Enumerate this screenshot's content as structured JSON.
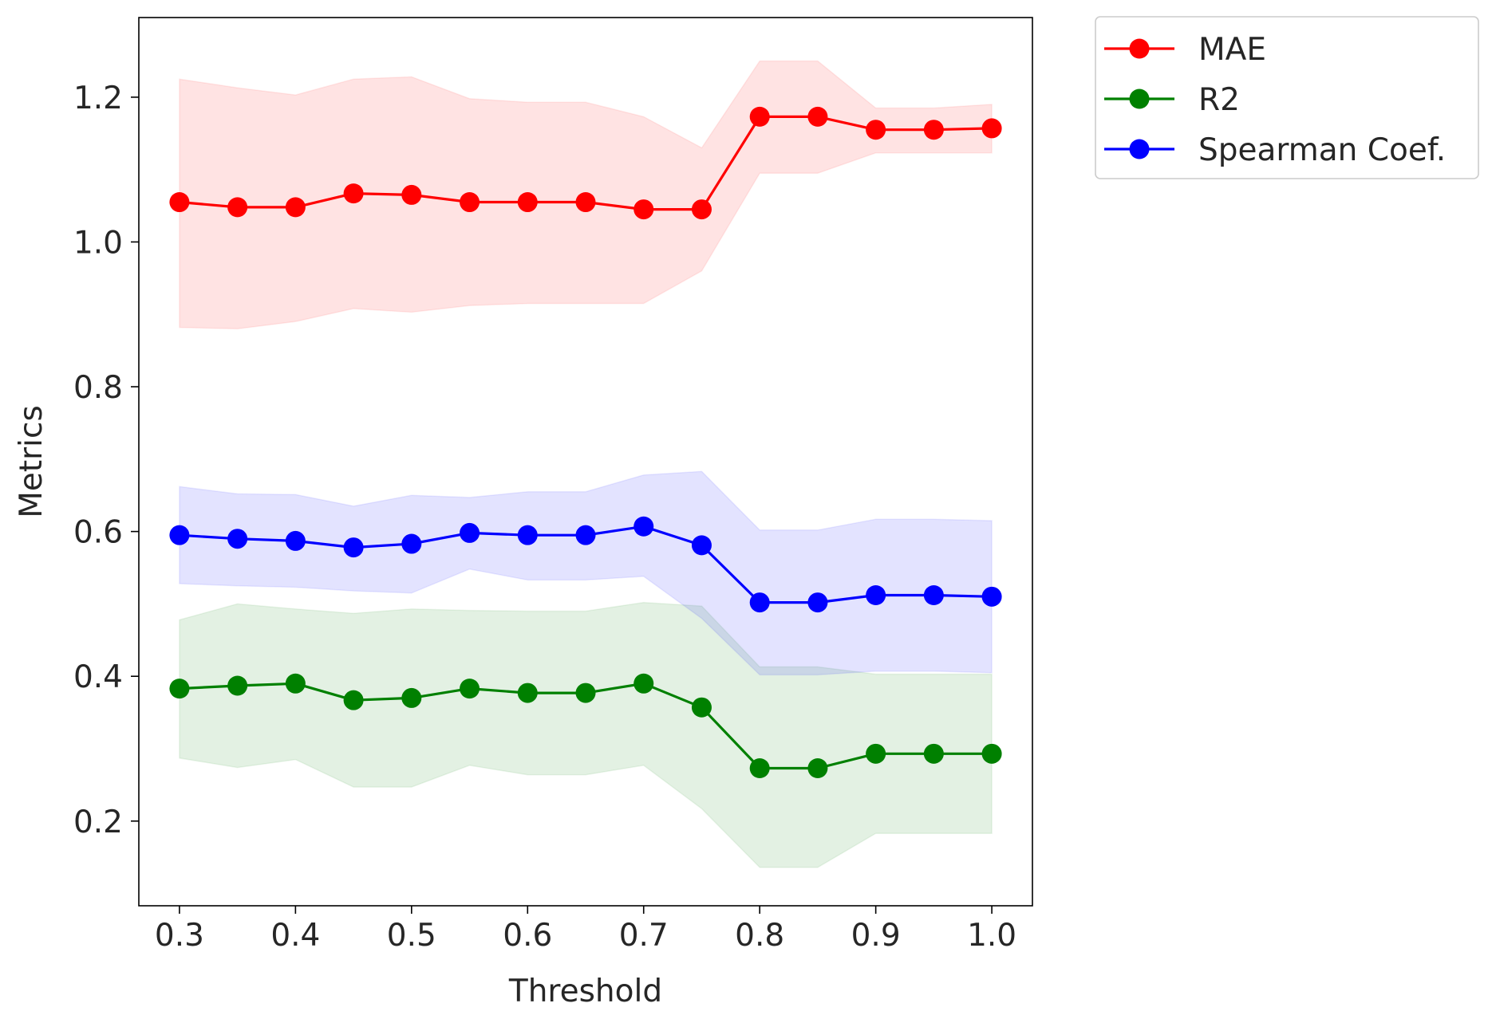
{
  "chart_data": {
    "type": "line",
    "title": "",
    "xlabel": "Threshold",
    "ylabel": "Metrics",
    "xlim": [
      0.265,
      1.035
    ],
    "ylim": [
      0.083,
      1.31
    ],
    "x": [
      0.3,
      0.35,
      0.4,
      0.45,
      0.5,
      0.55,
      0.6,
      0.65,
      0.7,
      0.75,
      0.8,
      0.85,
      0.9,
      0.95,
      1.0
    ],
    "xticks": [
      "0.3",
      "0.4",
      "0.5",
      "0.6",
      "0.7",
      "0.8",
      "0.9",
      "1.0"
    ],
    "yticks": [
      "0.2",
      "0.4",
      "0.6",
      "0.8",
      "1.0",
      "1.2"
    ],
    "legend_position": "outside-upper-right",
    "series": [
      {
        "name": "MAE",
        "color": "#ff0000",
        "band_color": "#ff0000",
        "values": [
          1.055,
          1.048,
          1.048,
          1.067,
          1.065,
          1.055,
          1.055,
          1.055,
          1.045,
          1.045,
          1.173,
          1.173,
          1.155,
          1.155,
          1.157
        ],
        "upper": [
          1.225,
          1.213,
          1.203,
          1.225,
          1.228,
          1.198,
          1.193,
          1.193,
          1.173,
          1.13,
          1.25,
          1.25,
          1.185,
          1.185,
          1.19
        ],
        "lower": [
          0.882,
          0.88,
          0.89,
          0.908,
          0.903,
          0.912,
          0.915,
          0.915,
          0.915,
          0.96,
          1.095,
          1.095,
          1.123,
          1.123,
          1.123
        ]
      },
      {
        "name": "R2",
        "color": "#008000",
        "band_color": "#008000",
        "values": [
          0.383,
          0.387,
          0.39,
          0.367,
          0.37,
          0.383,
          0.377,
          0.377,
          0.39,
          0.357,
          0.273,
          0.273,
          0.293,
          0.293,
          0.293
        ],
        "upper": [
          0.478,
          0.5,
          0.493,
          0.487,
          0.493,
          0.491,
          0.49,
          0.49,
          0.502,
          0.497,
          0.413,
          0.413,
          0.403,
          0.403,
          0.403
        ],
        "lower": [
          0.287,
          0.274,
          0.285,
          0.247,
          0.247,
          0.277,
          0.264,
          0.264,
          0.277,
          0.217,
          0.136,
          0.136,
          0.183,
          0.183,
          0.183
        ]
      },
      {
        "name": "Spearman Coef.",
        "color": "#0000ff",
        "band_color": "#0000ff",
        "values": [
          0.595,
          0.59,
          0.587,
          0.578,
          0.583,
          0.598,
          0.595,
          0.595,
          0.607,
          0.581,
          0.502,
          0.502,
          0.512,
          0.512,
          0.51
        ],
        "upper": [
          0.662,
          0.652,
          0.651,
          0.635,
          0.65,
          0.647,
          0.655,
          0.655,
          0.678,
          0.683,
          0.602,
          0.602,
          0.617,
          0.617,
          0.615
        ],
        "lower": [
          0.528,
          0.525,
          0.523,
          0.518,
          0.515,
          0.548,
          0.533,
          0.533,
          0.538,
          0.48,
          0.402,
          0.402,
          0.407,
          0.407,
          0.405
        ]
      }
    ]
  }
}
